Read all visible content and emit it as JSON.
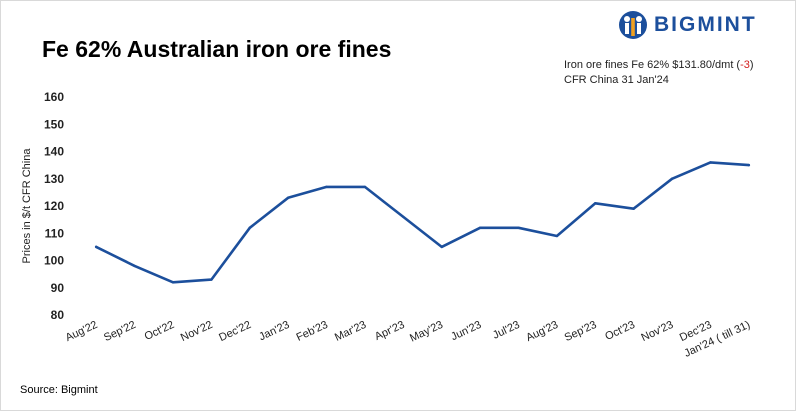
{
  "header": {
    "title": "Fe 62% Australian iron ore fines",
    "brand": "BIGMINT",
    "brand_color": "#1c4f9c"
  },
  "annotation": {
    "line1_prefix": "Iron ore fines Fe 62% $131.80/dmt (",
    "line1_change": "-3",
    "line1_suffix": ")",
    "line2": "CFR China 31 Jan'24",
    "change_color": "#d32020"
  },
  "footer": {
    "source": "Source: Bigmint"
  },
  "chart_data": {
    "type": "line",
    "title": "Fe 62% Australian iron ore fines",
    "ylabel": "Prices in $/t CFR China",
    "xlabel": "",
    "ylim": [
      80,
      160
    ],
    "yticks": [
      80,
      90,
      100,
      110,
      120,
      130,
      140,
      150,
      160
    ],
    "grid": false,
    "legend": "none",
    "line_color": "#1c4f9c",
    "categories": [
      "Aug'22",
      "Sep'22",
      "Oct'22",
      "Nov'22",
      "Dec'22",
      "Jan'23",
      "Feb'23",
      "Mar'23",
      "Apr'23",
      "May'23",
      "Jun'23",
      "Jul'23",
      "Aug'23",
      "Sep'23",
      "Oct'23",
      "Nov'23",
      "Dec'23",
      "Jan'24 ( till 31)"
    ],
    "series": [
      {
        "values": [
          105,
          98,
          92,
          93,
          112,
          123,
          127,
          127,
          116,
          105,
          112,
          112,
          109,
          121,
          119,
          130,
          136,
          135
        ]
      }
    ]
  }
}
